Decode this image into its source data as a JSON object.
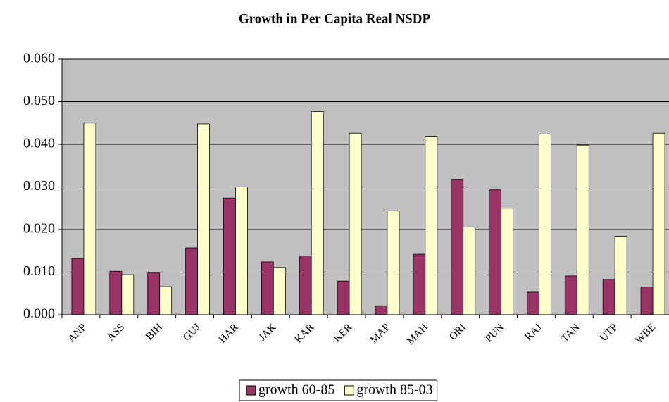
{
  "chart_data": {
    "type": "bar",
    "title": "Growth in Per Capita Real NSDP",
    "categories": [
      "ANP",
      "ASS",
      "BIH",
      "GUJ",
      "HAR",
      "JAK",
      "KAR",
      "KER",
      "MAP",
      "MAH",
      "ORI",
      "PUN",
      "RAJ",
      "TAN",
      "UTP",
      "WBE"
    ],
    "series": [
      {
        "name": "growth 60-85",
        "color": "#993366",
        "values": [
          0.0132,
          0.0102,
          0.0098,
          0.0157,
          0.0274,
          0.0124,
          0.0138,
          0.0079,
          0.0021,
          0.0142,
          0.0318,
          0.0293,
          0.0053,
          0.0091,
          0.0083,
          0.0065
        ]
      },
      {
        "name": "growth 85-03",
        "color": "#ffffcc",
        "values": [
          0.045,
          0.0094,
          0.0066,
          0.0448,
          0.03,
          0.0111,
          0.0477,
          0.0426,
          0.0244,
          0.0419,
          0.0206,
          0.025,
          0.0424,
          0.0398,
          0.0184,
          0.0426
        ]
      }
    ],
    "ylim": [
      0,
      0.06
    ],
    "yticks": [
      {
        "value": 0,
        "label": "0.000"
      },
      {
        "value": 0.01,
        "label": "0.010"
      },
      {
        "value": 0.02,
        "label": "0.020"
      },
      {
        "value": 0.03,
        "label": "0.030"
      },
      {
        "value": 0.04,
        "label": "0.040"
      },
      {
        "value": 0.05,
        "label": "0.050"
      },
      {
        "value": 0.06,
        "label": "0.060"
      }
    ],
    "grid": true,
    "background": "#c0c0c0",
    "legend": "bottom"
  }
}
